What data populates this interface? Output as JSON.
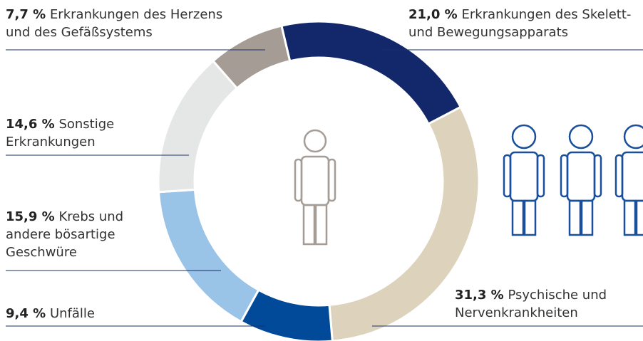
{
  "chart_data": {
    "type": "pie",
    "categories": [
      "Erkrankungen des Skelett- und Bewegungsapparats",
      "Psychische und Nervenkrankheiten",
      "Unfälle",
      "Krebs und andere bösartige Geschwüre",
      "Sonstige Erkrankungen",
      "Erkrankungen des Herzens und des Gefäßsystems"
    ],
    "values": [
      21.0,
      31.3,
      9.4,
      15.9,
      14.6,
      7.7
    ],
    "value_labels": [
      "21,0 %",
      "31,3 %",
      "9,4 %",
      "15,9 %",
      "14,6 %",
      "7,7 %"
    ],
    "colors": [
      "#12286b",
      "#ddd3bd",
      "#004a99",
      "#9ac3e8",
      "#e4e7e6",
      "#a59d95"
    ]
  }
}
